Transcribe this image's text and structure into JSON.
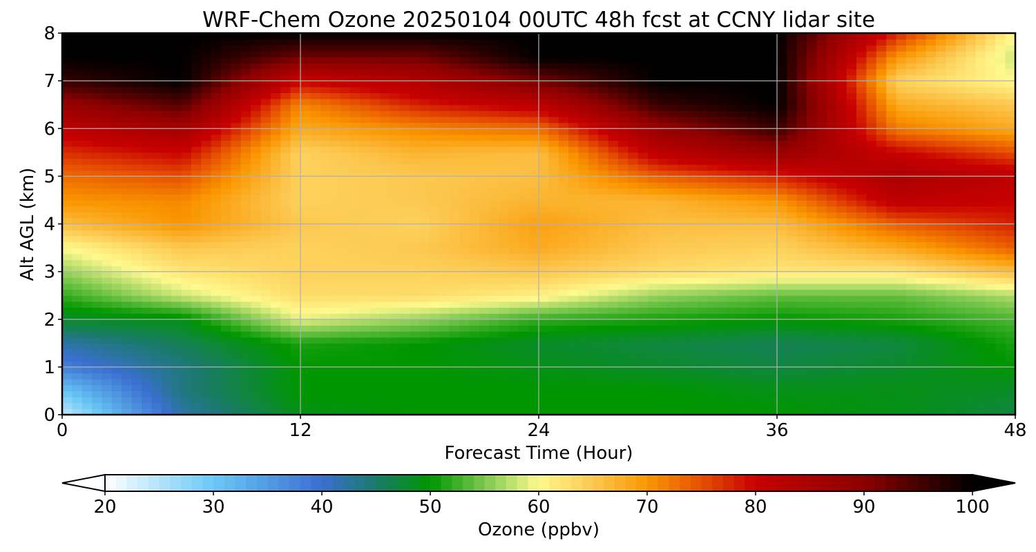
{
  "chart_data": {
    "type": "heatmap",
    "title": "WRF-Chem Ozone  20250104 00UTC 48h fcst at CCNY lidar site",
    "xlabel": "Forecast Time (Hour)",
    "ylabel": "Alt AGL (km)",
    "xlim": [
      0,
      48
    ],
    "ylim": [
      0,
      8
    ],
    "xticks": [
      0,
      12,
      24,
      36,
      48
    ],
    "yticks": [
      0,
      1,
      2,
      3,
      4,
      5,
      6,
      7,
      8
    ],
    "grid": true,
    "colorbar": {
      "label": "Ozone  (ppbv)",
      "min": 20,
      "max": 100,
      "ticks": [
        20,
        30,
        40,
        50,
        60,
        70,
        80,
        90,
        100
      ],
      "extend": "both",
      "orientation": "horizontal",
      "stops": [
        {
          "v": 20,
          "c": "#ffffff"
        },
        {
          "v": 30,
          "c": "#6ac8f6"
        },
        {
          "v": 40,
          "c": "#3a6fd0"
        },
        {
          "v": 45,
          "c": "#1a7a6a"
        },
        {
          "v": 50,
          "c": "#009600"
        },
        {
          "v": 55,
          "c": "#7cc850"
        },
        {
          "v": 60,
          "c": "#fff98e"
        },
        {
          "v": 65,
          "c": "#fcc850"
        },
        {
          "v": 70,
          "c": "#fa9600"
        },
        {
          "v": 75,
          "c": "#e65000"
        },
        {
          "v": 80,
          "c": "#c80000"
        },
        {
          "v": 90,
          "c": "#8c0000"
        },
        {
          "v": 100,
          "c": "#000000"
        }
      ]
    },
    "hours": [
      0,
      6,
      12,
      18,
      24,
      30,
      36,
      42,
      48
    ],
    "levels_km": [
      0,
      0.5,
      1,
      1.5,
      2,
      2.5,
      3,
      3.5,
      4,
      4.5,
      5,
      5.5,
      6,
      6.5,
      7,
      7.5,
      8
    ],
    "ozone_ppbv": [
      [
        24,
        42,
        49,
        50,
        50,
        50,
        50,
        49,
        47
      ],
      [
        30,
        44,
        50,
        50,
        50,
        50,
        49,
        49,
        48
      ],
      [
        38,
        44,
        50,
        50,
        49,
        48,
        47,
        48,
        50
      ],
      [
        42,
        46,
        51,
        50,
        48,
        47,
        46,
        47,
        51
      ],
      [
        48,
        49,
        59,
        56,
        52,
        51,
        50,
        51,
        53
      ],
      [
        52,
        58,
        63,
        63,
        61,
        56,
        54,
        54,
        57
      ],
      [
        56,
        62,
        64,
        64,
        65,
        63,
        62,
        62,
        66
      ],
      [
        60,
        65,
        64,
        65,
        68,
        65,
        64,
        68,
        74
      ],
      [
        66,
        70,
        65,
        64,
        69,
        66,
        66,
        74,
        78
      ],
      [
        70,
        71,
        64,
        65,
        67,
        67,
        70,
        82,
        80
      ],
      [
        73,
        75,
        64,
        65,
        66,
        74,
        78,
        85,
        82
      ],
      [
        77,
        80,
        64,
        67,
        66,
        82,
        88,
        80,
        75
      ],
      [
        82,
        86,
        68,
        71,
        73,
        88,
        96,
        72,
        68
      ],
      [
        88,
        94,
        71,
        78,
        82,
        96,
        100,
        68,
        65
      ],
      [
        96,
        100,
        80,
        84,
        92,
        100,
        100,
        64,
        60
      ],
      [
        100,
        100,
        92,
        92,
        100,
        100,
        100,
        70,
        58
      ],
      [
        100,
        100,
        100,
        100,
        100,
        100,
        100,
        78,
        60
      ]
    ]
  }
}
